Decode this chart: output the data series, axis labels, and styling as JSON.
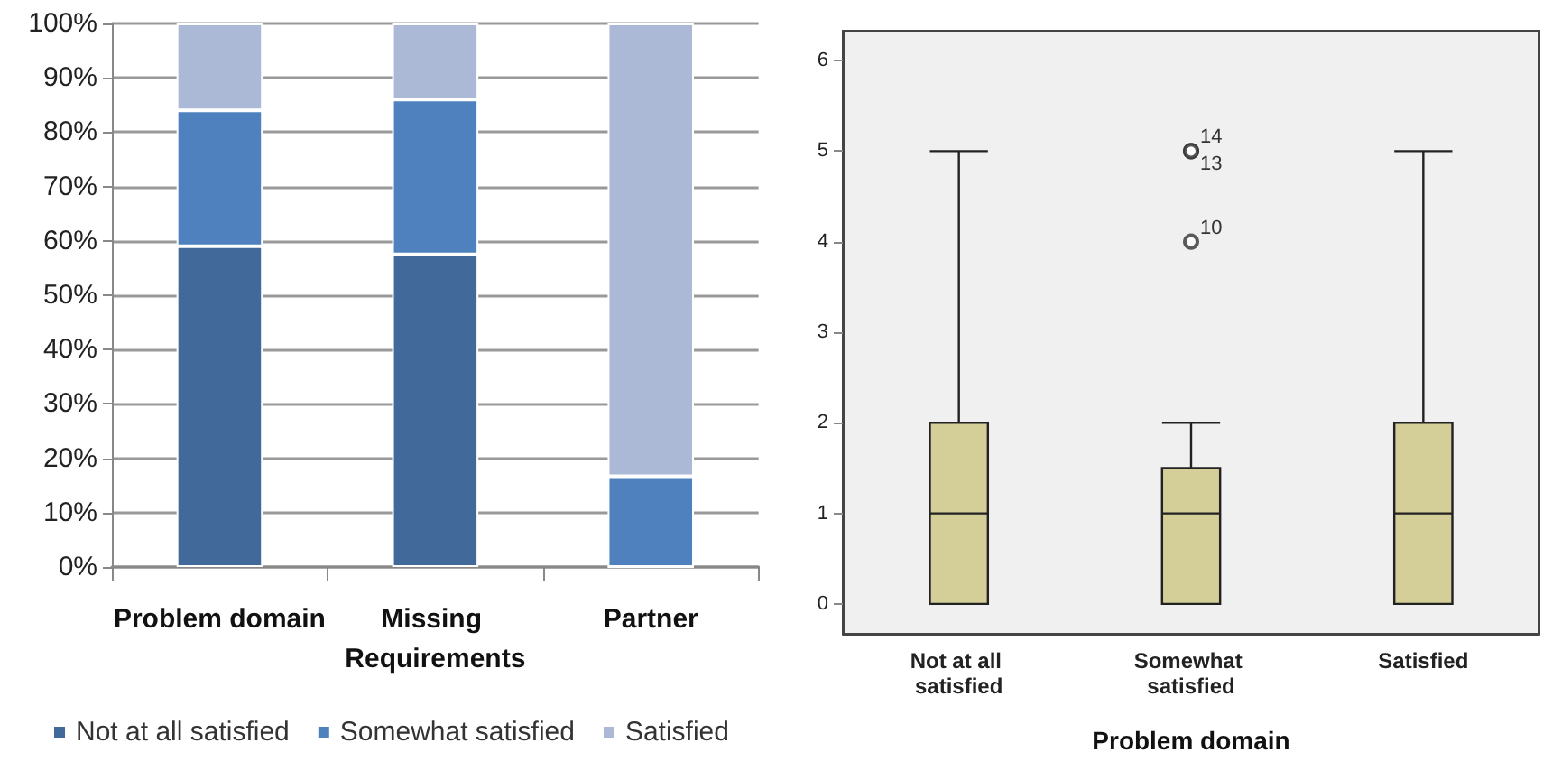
{
  "chart_data": [
    {
      "type": "bar",
      "stacked": true,
      "categories": [
        "Problem domain",
        "Missing Requirements",
        "Partner"
      ],
      "series": [
        {
          "name": "Not at all satisfied",
          "color": "#416a9b",
          "values": [
            59,
            57.5,
            0
          ]
        },
        {
          "name": "Somewhat satisfied",
          "color": "#4e81bd",
          "values": [
            25,
            28.5,
            16.7
          ]
        },
        {
          "name": "Satisfied",
          "color": "#abb9d7",
          "values": [
            16,
            14,
            83.3
          ]
        }
      ],
      "ylim": [
        0,
        100
      ],
      "yticks": [
        {
          "value": 0,
          "label": "0%"
        },
        {
          "value": 10,
          "label": "10%"
        },
        {
          "value": 20,
          "label": "20%"
        },
        {
          "value": 30,
          "label": "30%"
        },
        {
          "value": 40,
          "label": "40%"
        },
        {
          "value": 50,
          "label": "50%"
        },
        {
          "value": 60,
          "label": "60%"
        },
        {
          "value": 70,
          "label": "70%"
        },
        {
          "value": 80,
          "label": "80%"
        },
        {
          "value": 90,
          "label": "90%"
        },
        {
          "value": 100,
          "label": "100%"
        }
      ],
      "grid": "y",
      "legend": "bottom"
    },
    {
      "type": "box",
      "categories": [
        "Not at all satisfied",
        "Somewhat satisfied",
        "Satisfied"
      ],
      "xlabel": "Problem domain",
      "color": "#d4cf98",
      "boxes": [
        {
          "low": 0,
          "q1": 0,
          "median": 1,
          "q3": 2,
          "high": 5
        },
        {
          "low": 0,
          "q1": 0,
          "median": 1,
          "q3": 1.5,
          "high": 2,
          "outliers": [
            5,
            5,
            4
          ]
        },
        {
          "low": 0,
          "q1": 0,
          "median": 1,
          "q3": 2,
          "high": 5
        }
      ],
      "ylim": [
        -0.33,
        6.33
      ],
      "yticks": [
        0,
        1,
        2,
        3,
        4,
        5,
        6
      ],
      "grid": false,
      "annotations": [
        "14",
        "13",
        "10"
      ]
    }
  ]
}
